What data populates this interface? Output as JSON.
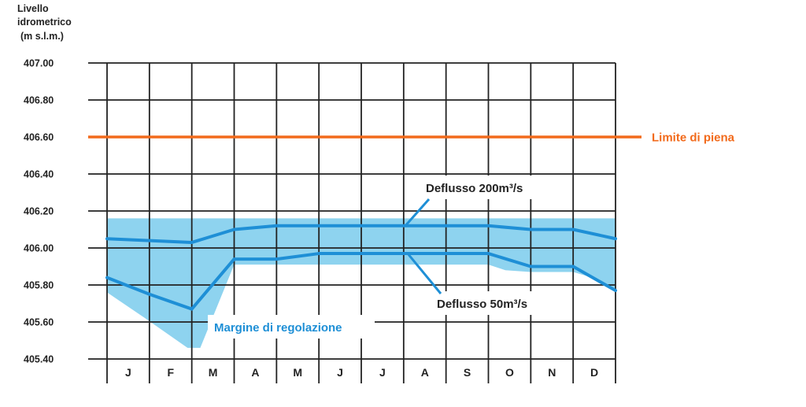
{
  "chart_data": {
    "type": "line",
    "ylabel_lines": [
      "Livello",
      "idrometrico",
      "(m s.l.m.)"
    ],
    "y_ticks": [
      "407.00",
      "406.80",
      "406.60",
      "406.40",
      "406.20",
      "406.00",
      "405.80",
      "405.60",
      "405.40"
    ],
    "ylim": [
      405.4,
      407.0
    ],
    "categories": [
      "J",
      "F",
      "M",
      "A",
      "M",
      "J",
      "J",
      "A",
      "S",
      "O",
      "N",
      "D"
    ],
    "grid": true,
    "limit_line": {
      "label": "Limite di piena",
      "value": 406.6,
      "color": "#f26a1b"
    },
    "series": [
      {
        "name": "Deflusso 200m³/s",
        "color": "#1e8fd6",
        "x": [
          0,
          1,
          2,
          3,
          4,
          5,
          6,
          7,
          8,
          9,
          10,
          11,
          12
        ],
        "values": [
          406.05,
          406.04,
          406.03,
          406.1,
          406.12,
          406.12,
          406.12,
          406.12,
          406.12,
          406.12,
          406.1,
          406.1,
          406.05
        ]
      },
      {
        "name": "Deflusso 50m³/s",
        "color": "#1e8fd6",
        "x": [
          0,
          1,
          2,
          3,
          4,
          5,
          6,
          7,
          8,
          9,
          10,
          11,
          12
        ],
        "values": [
          405.84,
          405.75,
          405.67,
          405.94,
          405.94,
          405.97,
          405.97,
          405.97,
          405.97,
          405.97,
          405.9,
          405.9,
          405.77
        ]
      }
    ],
    "band": {
      "label": "Margine di regolazione",
      "color": "#8ed3ef",
      "text_color": "#1e8fd6",
      "upper": {
        "x": [
          0,
          12
        ],
        "values": [
          406.16,
          406.16
        ]
      },
      "lower": {
        "x": [
          0,
          0.9,
          1.9,
          2.2,
          3.0,
          3.2,
          4.0,
          9.0,
          9.4,
          10.0,
          11.0,
          11.3,
          12.0
        ],
        "values": [
          405.76,
          405.62,
          405.46,
          405.46,
          405.91,
          405.91,
          405.91,
          405.91,
          405.88,
          405.87,
          405.87,
          405.85,
          405.78
        ]
      }
    }
  }
}
